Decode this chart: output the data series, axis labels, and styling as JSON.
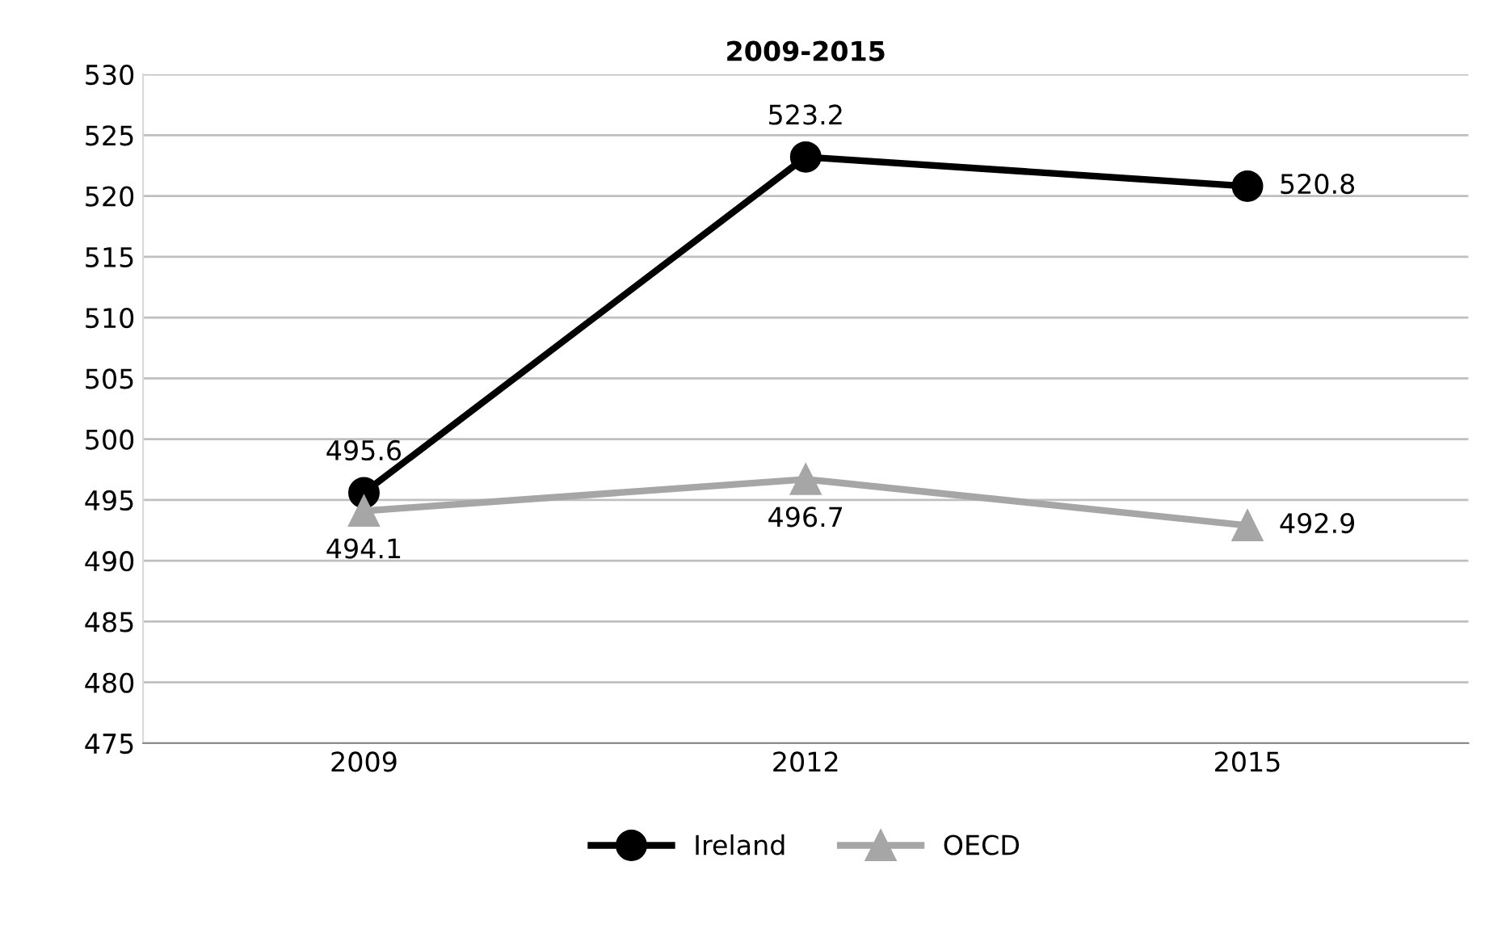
{
  "chart_data": {
    "type": "line",
    "title": "2009-2015",
    "categories": [
      "2009",
      "2012",
      "2015"
    ],
    "series": [
      {
        "name": "Ireland",
        "color": "#000000",
        "values": [
          495.6,
          523.2,
          520.8
        ],
        "marker": "circle"
      },
      {
        "name": "OECD",
        "color": "#a6a6a6",
        "values": [
          494.1,
          496.7,
          492.9
        ],
        "marker": "triangle"
      }
    ],
    "ylim": [
      475,
      530
    ],
    "yticks": [
      475,
      480,
      485,
      490,
      495,
      500,
      505,
      510,
      515,
      520,
      525,
      530
    ],
    "grid": "y",
    "legend": "bottom",
    "data_labels": true,
    "line_style": "solid"
  }
}
